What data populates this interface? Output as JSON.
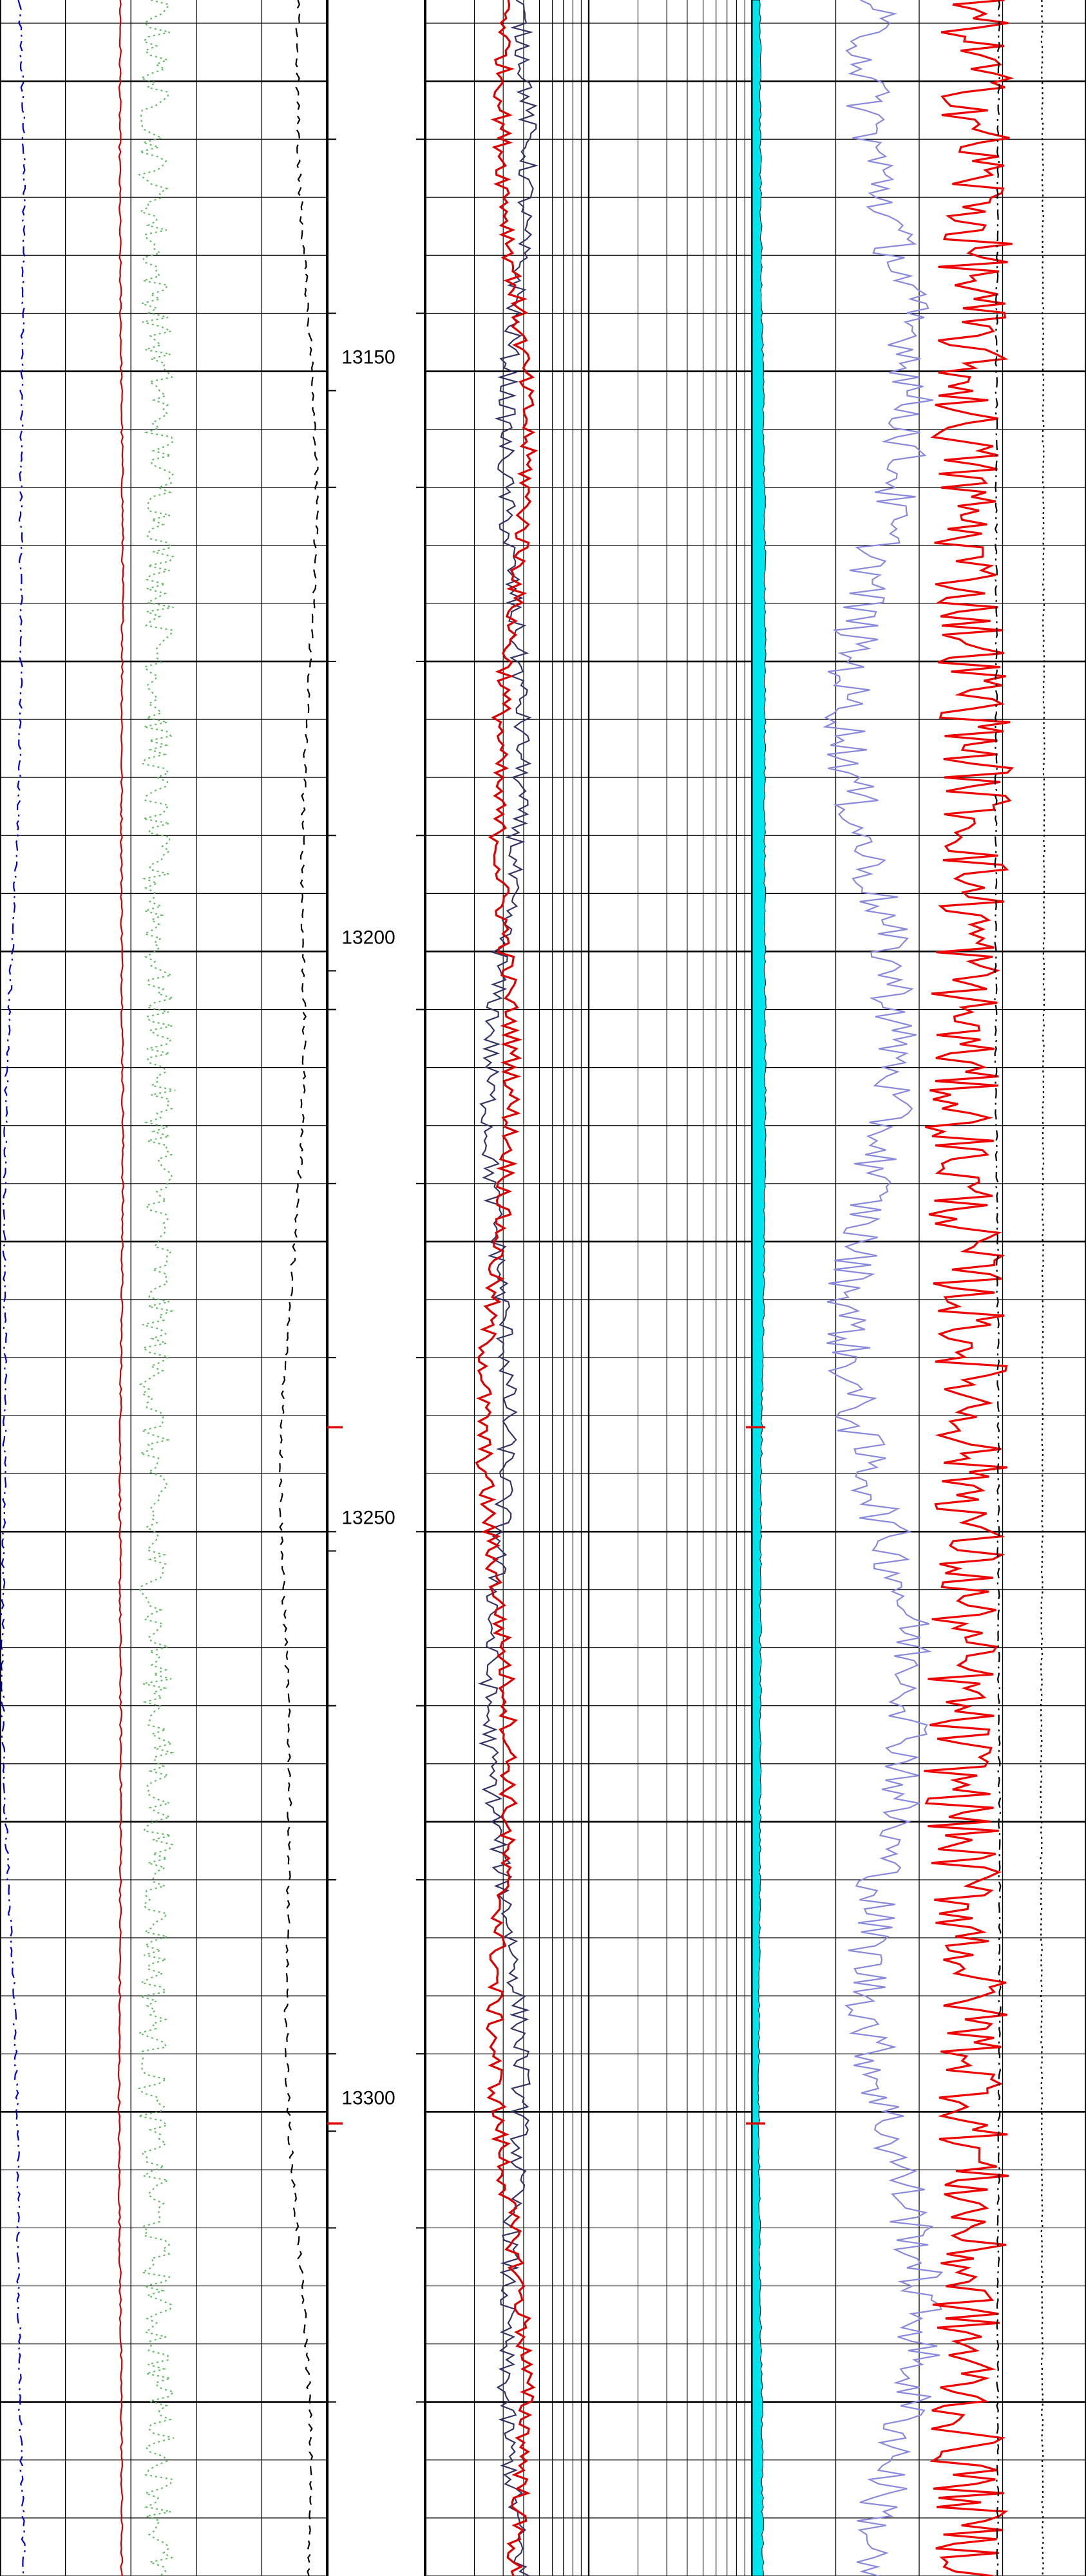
{
  "chart_data": {
    "type": "line",
    "depth_axis": {
      "range": [
        13118,
        13340
      ],
      "labels": [
        "13150",
        "13200",
        "13250",
        "13300"
      ],
      "label_values": [
        13150,
        13200,
        13250,
        13300
      ],
      "minor_tick_values": [
        13130,
        13145,
        13160,
        13175,
        13190,
        13205,
        13220,
        13235,
        13250,
        13265,
        13280,
        13295,
        13310,
        13325
      ],
      "grid_step": 5,
      "major_grid_step": 25
    },
    "tracks": [
      {
        "id": "track1",
        "scale": "linear",
        "vertical_divisions": 5,
        "curves": [
          {
            "color": "#0000cc",
            "style": "dash-dot",
            "x_mean": 0.04,
            "x_amp": 0.035,
            "noise": 0.005,
            "wave": 0.18
          },
          {
            "color": "#cc0000",
            "style": "solid",
            "x_mean": 0.37,
            "x_amp": 0.005,
            "noise": 0.003,
            "wave": 0.5
          },
          {
            "color": "#66bb66",
            "style": "dotted",
            "x_mean": 0.48,
            "x_amp": 0.01,
            "noise": 0.045,
            "wave": 1.0
          },
          {
            "color": "#000000",
            "style": "dashed",
            "x_mean": 0.91,
            "x_amp": 0.05,
            "noise": 0.006,
            "wave": 0.3
          }
        ]
      },
      {
        "id": "track2",
        "scale": "log",
        "decades": 2,
        "curves": [
          {
            "color": "#333366",
            "style": "solid",
            "x_mean": 0.25,
            "x_amp": 0.05,
            "noise": 0.028,
            "wave": 0.7
          },
          {
            "color": "#dd0000",
            "style": "solid",
            "x_mean": 0.245,
            "x_amp": 0.05,
            "noise": 0.026,
            "wave": 0.7
          }
        ]
      },
      {
        "id": "track3",
        "scale": "linear",
        "vertical_divisions": 4,
        "curves": [
          {
            "color": "#00e5ee",
            "style": "fill",
            "x_mean": 0.03,
            "x_amp": 0.01,
            "noise": 0.003,
            "wave": 0.2
          },
          {
            "color": "#8888dd",
            "style": "solid",
            "x_mean": 0.39,
            "x_amp": 0.08,
            "noise": 0.07,
            "wave": 1.0
          },
          {
            "color": "#ee0000",
            "style": "solid",
            "x_mean": 0.65,
            "x_amp": 0.02,
            "noise": 0.11,
            "wave": 1.0
          },
          {
            "color": "#000000",
            "style": "dash-dot",
            "x_mean": 0.735,
            "x_amp": 0.006,
            "noise": 0.003,
            "wave": 0.2
          },
          {
            "color": "#000000",
            "style": "dotted",
            "x_mean": 0.87,
            "x_amp": 0.004,
            "noise": 0.002,
            "wave": 0.2
          }
        ]
      }
    ],
    "markers": [
      {
        "depth": 13241,
        "color": "#dd0000"
      },
      {
        "depth": 13301,
        "color": "#dd0000"
      }
    ]
  }
}
